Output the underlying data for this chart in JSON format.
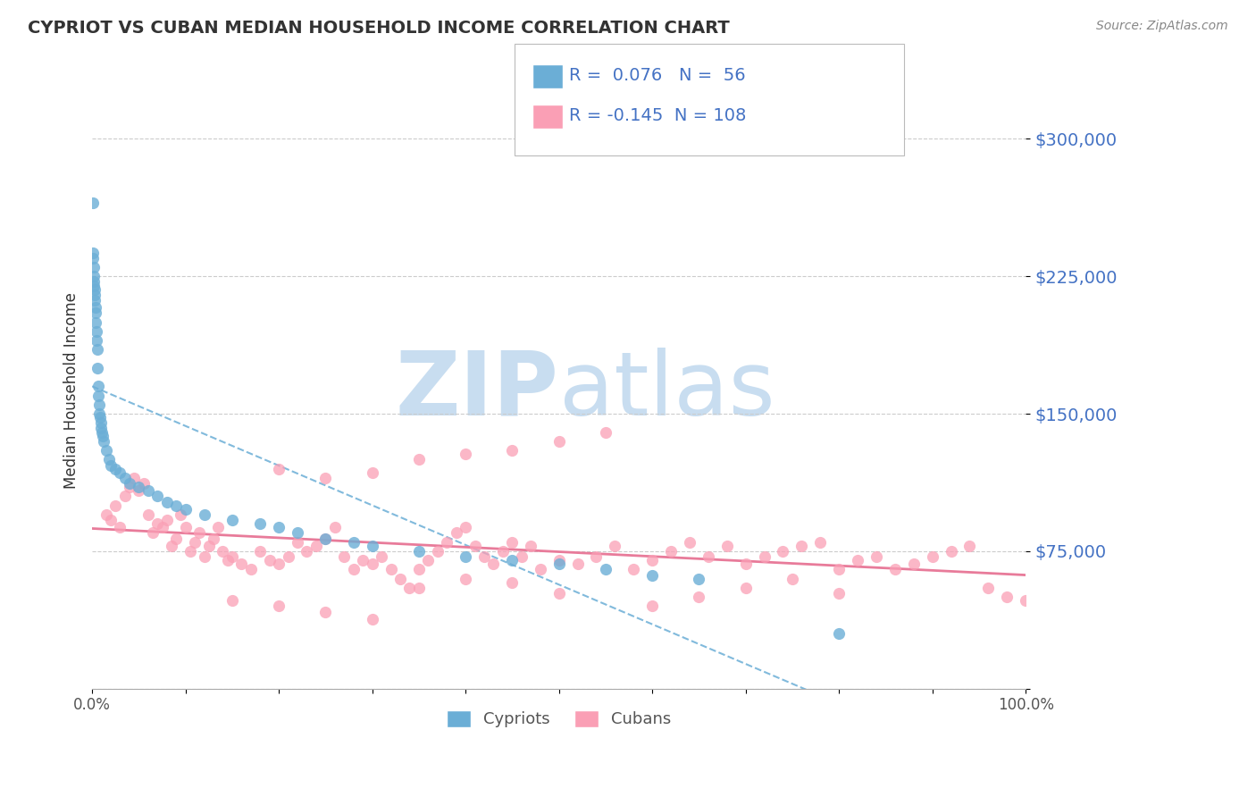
{
  "title": "CYPRIOT VS CUBAN MEDIAN HOUSEHOLD INCOME CORRELATION CHART",
  "source_text": "Source: ZipAtlas.com",
  "ylabel": "Median Household Income",
  "xlim": [
    0.0,
    100.0
  ],
  "ylim": [
    0,
    325000
  ],
  "yticks": [
    0,
    75000,
    150000,
    225000,
    300000
  ],
  "ytick_labels": [
    "",
    "$75,000",
    "$150,000",
    "$225,000",
    "$300,000"
  ],
  "cypriot_color": "#6baed6",
  "cuban_color": "#fa9fb5",
  "cypriot_R": 0.076,
  "cypriot_N": 56,
  "cuban_R": -0.145,
  "cuban_N": 108,
  "axis_color": "#4472c4",
  "trend_cuban_color": "#e87b9a",
  "watermark_color": "#c8ddf0",
  "cypriot_scatter_x": [
    0.08,
    0.1,
    0.12,
    0.15,
    0.18,
    0.2,
    0.22,
    0.25,
    0.28,
    0.3,
    0.35,
    0.38,
    0.4,
    0.45,
    0.5,
    0.55,
    0.6,
    0.65,
    0.7,
    0.75,
    0.8,
    0.85,
    0.9,
    0.95,
    1.0,
    1.1,
    1.2,
    1.5,
    1.8,
    2.0,
    2.5,
    3.0,
    3.5,
    4.0,
    5.0,
    6.0,
    7.0,
    8.0,
    9.0,
    10.0,
    12.0,
    15.0,
    18.0,
    20.0,
    22.0,
    25.0,
    28.0,
    30.0,
    35.0,
    40.0,
    45.0,
    50.0,
    55.0,
    60.0,
    65.0,
    80.0
  ],
  "cypriot_scatter_y": [
    265000,
    235000,
    238000,
    230000,
    225000,
    222000,
    220000,
    218000,
    215000,
    212000,
    208000,
    205000,
    200000,
    195000,
    190000,
    185000,
    175000,
    165000,
    160000,
    155000,
    150000,
    148000,
    145000,
    142000,
    140000,
    138000,
    135000,
    130000,
    125000,
    122000,
    120000,
    118000,
    115000,
    112000,
    110000,
    108000,
    105000,
    102000,
    100000,
    98000,
    95000,
    92000,
    90000,
    88000,
    85000,
    82000,
    80000,
    78000,
    75000,
    72000,
    70000,
    68000,
    65000,
    62000,
    60000,
    30000
  ],
  "cuban_scatter_x": [
    1.5,
    2.0,
    2.5,
    3.0,
    3.5,
    4.0,
    4.5,
    5.0,
    5.5,
    6.0,
    6.5,
    7.0,
    7.5,
    8.0,
    8.5,
    9.0,
    9.5,
    10.0,
    10.5,
    11.0,
    11.5,
    12.0,
    12.5,
    13.0,
    13.5,
    14.0,
    14.5,
    15.0,
    16.0,
    17.0,
    18.0,
    19.0,
    20.0,
    21.0,
    22.0,
    23.0,
    24.0,
    25.0,
    26.0,
    27.0,
    28.0,
    29.0,
    30.0,
    31.0,
    32.0,
    33.0,
    34.0,
    35.0,
    36.0,
    37.0,
    38.0,
    39.0,
    40.0,
    41.0,
    42.0,
    43.0,
    44.0,
    45.0,
    46.0,
    47.0,
    48.0,
    50.0,
    52.0,
    54.0,
    56.0,
    58.0,
    60.0,
    62.0,
    64.0,
    66.0,
    68.0,
    70.0,
    72.0,
    74.0,
    76.0,
    78.0,
    80.0,
    82.0,
    84.0,
    86.0,
    88.0,
    90.0,
    92.0,
    94.0,
    96.0,
    98.0,
    100.0,
    20.0,
    25.0,
    30.0,
    35.0,
    40.0,
    45.0,
    50.0,
    55.0,
    60.0,
    65.0,
    70.0,
    75.0,
    80.0,
    15.0,
    20.0,
    25.0,
    30.0,
    35.0,
    40.0,
    45.0,
    50.0
  ],
  "cuban_scatter_y": [
    95000,
    92000,
    100000,
    88000,
    105000,
    110000,
    115000,
    108000,
    112000,
    95000,
    85000,
    90000,
    88000,
    92000,
    78000,
    82000,
    95000,
    88000,
    75000,
    80000,
    85000,
    72000,
    78000,
    82000,
    88000,
    75000,
    70000,
    72000,
    68000,
    65000,
    75000,
    70000,
    68000,
    72000,
    80000,
    75000,
    78000,
    82000,
    88000,
    72000,
    65000,
    70000,
    68000,
    72000,
    65000,
    60000,
    55000,
    65000,
    70000,
    75000,
    80000,
    85000,
    88000,
    78000,
    72000,
    68000,
    75000,
    80000,
    72000,
    78000,
    65000,
    70000,
    68000,
    72000,
    78000,
    65000,
    70000,
    75000,
    80000,
    72000,
    78000,
    68000,
    72000,
    75000,
    78000,
    80000,
    65000,
    70000,
    72000,
    65000,
    68000,
    72000,
    75000,
    78000,
    55000,
    50000,
    48000,
    120000,
    115000,
    118000,
    125000,
    128000,
    130000,
    135000,
    140000,
    45000,
    50000,
    55000,
    60000,
    52000,
    48000,
    45000,
    42000,
    38000,
    55000,
    60000,
    58000,
    52000
  ]
}
